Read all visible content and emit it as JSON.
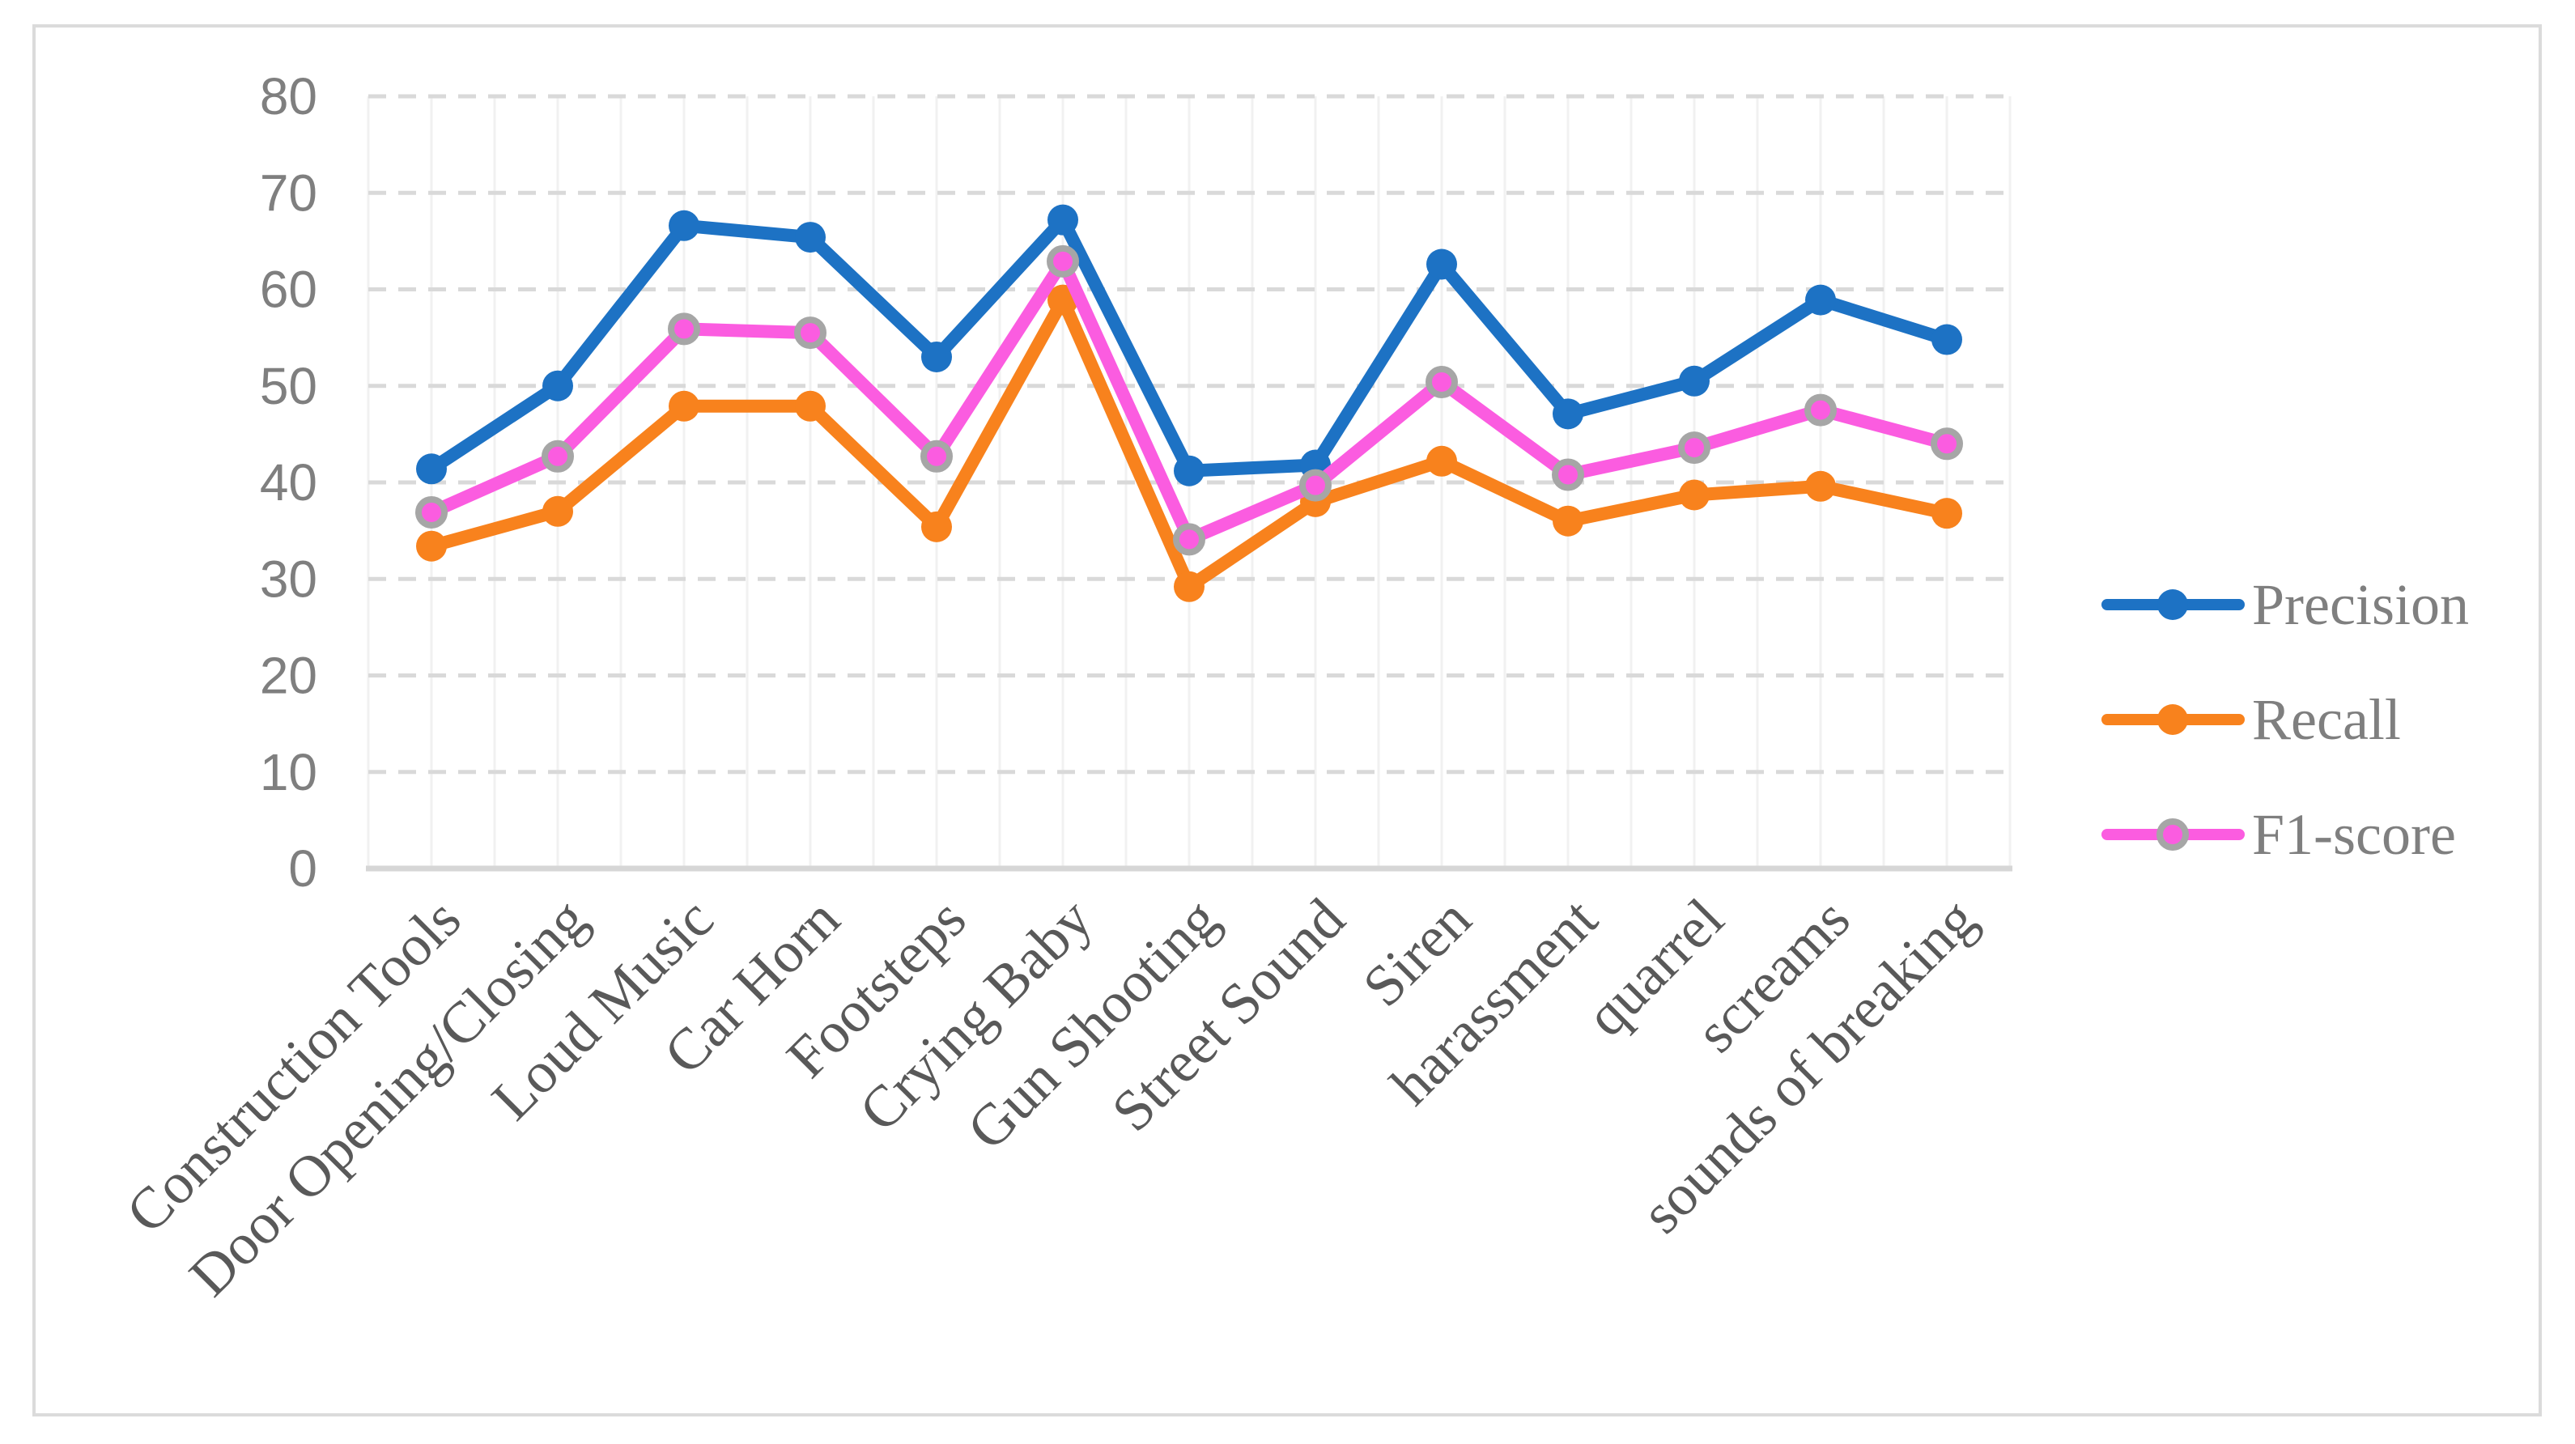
{
  "colors": {
    "precision": "#1D72C4",
    "recall": "#F8821D",
    "f1": "#FB5CE0",
    "f1_marker_ring": "#A6A6A6",
    "grid_dashed": "#D9D9D9",
    "grid_vertical": "#F1F1F1",
    "axis_line": "#D6D6D6",
    "y_tick_text": "#7F7F7F",
    "category_text": "#595959",
    "legend_text": "#7F7F7F",
    "frame_border": "#DBDBDB",
    "background": "#FFFFFF"
  },
  "legend": {
    "position": "right",
    "items": [
      {
        "label": "Precision"
      },
      {
        "label": "Recall"
      },
      {
        "label": "F1-score"
      }
    ]
  },
  "chart_data": {
    "type": "line",
    "title": "",
    "xlabel": "",
    "ylabel": "",
    "ylim": [
      0,
      80
    ],
    "yticks": [
      0,
      10,
      20,
      30,
      40,
      50,
      60,
      70,
      80
    ],
    "grid": {
      "horizontal": "dashed",
      "vertical": "solid",
      "legend_position": "right"
    },
    "categories": [
      "Construction Tools",
      "Door Opening/Closing",
      "Loud Music",
      "Car Horn",
      "Footsteps",
      "Crying Baby",
      "Gun Shooting",
      "Street Sound",
      "Siren",
      "harassment",
      "quarrel",
      "screams",
      "sounds of breaking"
    ],
    "series": [
      {
        "name": "Precision",
        "color": "#1D72C4",
        "marker": "circle",
        "values": [
          41.4,
          50.0,
          66.6,
          65.4,
          53.0,
          67.2,
          41.2,
          41.8,
          62.6,
          47.1,
          50.5,
          58.9,
          54.8
        ]
      },
      {
        "name": "Recall",
        "color": "#F8821D",
        "marker": "circle",
        "values": [
          33.4,
          37.0,
          47.9,
          47.9,
          35.4,
          58.9,
          29.2,
          38.0,
          42.2,
          36.0,
          38.7,
          39.6,
          36.8
        ]
      },
      {
        "name": "F1-score",
        "color": "#FB5CE0",
        "marker": "circle",
        "marker_ring": "#A6A6A6",
        "values": [
          36.9,
          42.7,
          55.9,
          55.5,
          42.7,
          62.9,
          34.1,
          39.7,
          50.4,
          40.8,
          43.6,
          47.5,
          44.0
        ]
      }
    ]
  }
}
